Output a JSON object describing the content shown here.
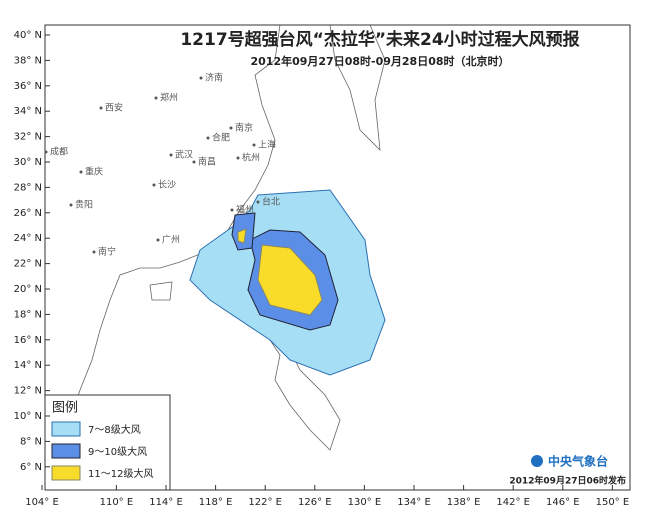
{
  "header": {
    "title": "1217号超强台风“杰拉华”未来24小时过程大风预报",
    "subtitle": "2012年09月27日08时-09月28日08时（北京时）"
  },
  "lat_ticks": [
    {
      "value": 40,
      "label": "40° N"
    },
    {
      "value": 38,
      "label": "38° N"
    },
    {
      "value": 36,
      "label": "36° N"
    },
    {
      "value": 34,
      "label": "34° N"
    },
    {
      "value": 32,
      "label": "32° N"
    },
    {
      "value": 30,
      "label": "30° N"
    },
    {
      "value": 28,
      "label": "28° N"
    },
    {
      "value": 26,
      "label": "26° N"
    },
    {
      "value": 24,
      "label": "24° N"
    },
    {
      "value": 22,
      "label": "22° N"
    },
    {
      "value": 20,
      "label": "20° N"
    },
    {
      "value": 18,
      "label": "18° N"
    },
    {
      "value": 16,
      "label": "16° N"
    },
    {
      "value": 14,
      "label": "14° N"
    },
    {
      "value": 12,
      "label": "12° N"
    },
    {
      "value": 10,
      "label": "10° N"
    },
    {
      "value": 8,
      "label": "8° N"
    },
    {
      "value": 6,
      "label": "6° N"
    }
  ],
  "lon_ticks": [
    {
      "value": 104,
      "label": "104° E"
    },
    {
      "value": 110,
      "label": "110° E"
    },
    {
      "value": 114,
      "label": "114° E"
    },
    {
      "value": 118,
      "label": "118° E"
    },
    {
      "value": 122,
      "label": "122° E"
    },
    {
      "value": 126,
      "label": "126° E"
    },
    {
      "value": 130,
      "label": "130° E"
    },
    {
      "value": 134,
      "label": "134° E"
    },
    {
      "value": 138,
      "label": "138° E"
    },
    {
      "value": 142,
      "label": "142° E"
    },
    {
      "value": 146,
      "label": "146° E"
    },
    {
      "value": 150,
      "label": "150° E"
    }
  ],
  "cities": [
    "济南",
    "西安",
    "郑州",
    "南京",
    "合肥",
    "上海",
    "武汉",
    "杭州",
    "成都",
    "重庆",
    "南昌",
    "长沙",
    "福州",
    "贵阳",
    "台北",
    "广州",
    "南宁"
  ],
  "legend": {
    "title": "图例",
    "items": [
      "7～8级大风",
      "9～10级大风",
      "11～12级大风"
    ]
  },
  "footer": {
    "agency": "中央气象台",
    "issued": "2012年09月27日06时发布"
  }
}
